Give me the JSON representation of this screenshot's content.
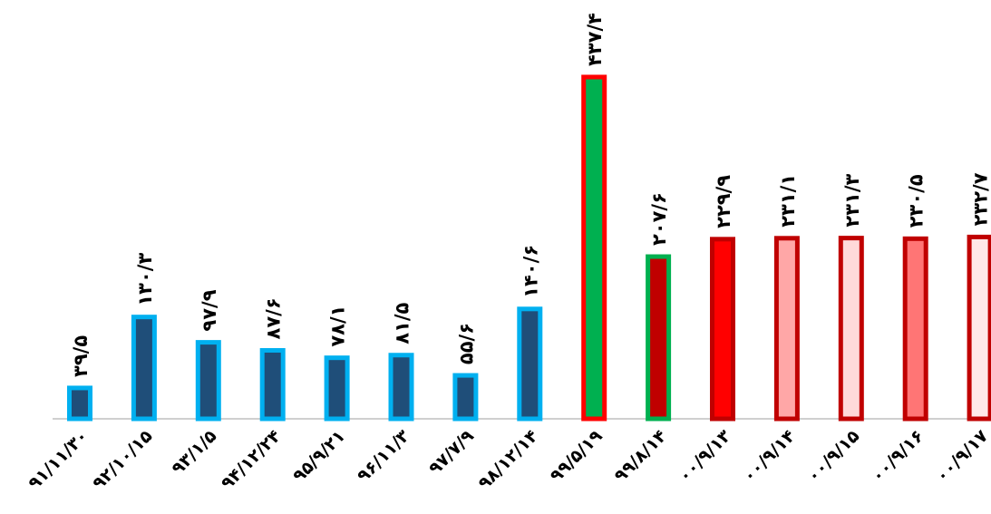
{
  "chart_data": {
    "type": "bar",
    "title": "",
    "xlabel": "",
    "ylabel": "",
    "ylim": [
      0,
      450
    ],
    "grid": false,
    "legend": false,
    "categories": [
      "۹۱/۱۱/۳۰",
      "۹۲/۱۰/۱۵",
      "۹۳/۱/۵",
      "۹۴/۱۲/۲۴",
      "۹۵/۹/۲۱",
      "۹۶/۱۱/۳",
      "۹۷/۷/۹",
      "۹۸/۱۲/۱۴",
      "۹۹/۵/۱۹",
      "۹۹/۸/۱۴",
      "۰۰/۹/۱۳",
      "۰۰/۹/۱۴",
      "۰۰/۹/۱۵",
      "۰۰/۹/۱۶",
      "۰۰/۹/۱۷"
    ],
    "values": [
      39.5,
      130.3,
      97.9,
      87.6,
      78.1,
      81.5,
      55.6,
      140.6,
      437.4,
      207.6,
      229.9,
      231.1,
      231.3,
      230.5,
      232.7
    ],
    "value_labels": [
      "۳۹/۵",
      "۱۳۰/۳",
      "۹۷/۹",
      "۸۷/۶",
      "۷۸/۱",
      "۸۱/۵",
      "۵۵/۶",
      "۱۴۰/۶",
      "۴۳۷/۴",
      "۲۰۷/۶",
      "۲۲۹/۹",
      "۲۳۱/۱",
      "۲۳۱/۳",
      "۲۳۰/۵",
      "۲۳۲/۷"
    ],
    "bar_fill": [
      "#1f4e79",
      "#1f4e79",
      "#1f4e79",
      "#1f4e79",
      "#1f4e79",
      "#1f4e79",
      "#1f4e79",
      "#1f4e79",
      "#00b050",
      "#c00000",
      "#ff0000",
      "#ffa7a7",
      "#ffd9d9",
      "#ff7575",
      "#ffe8e8"
    ],
    "bar_border": [
      "#00b0f0",
      "#00b0f0",
      "#00b0f0",
      "#00b0f0",
      "#00b0f0",
      "#00b0f0",
      "#00b0f0",
      "#00b0f0",
      "#ff0000",
      "#00b050",
      "#c00000",
      "#c00000",
      "#c00000",
      "#c00000",
      "#c00000"
    ],
    "axis_color": "#bfbfbf"
  }
}
